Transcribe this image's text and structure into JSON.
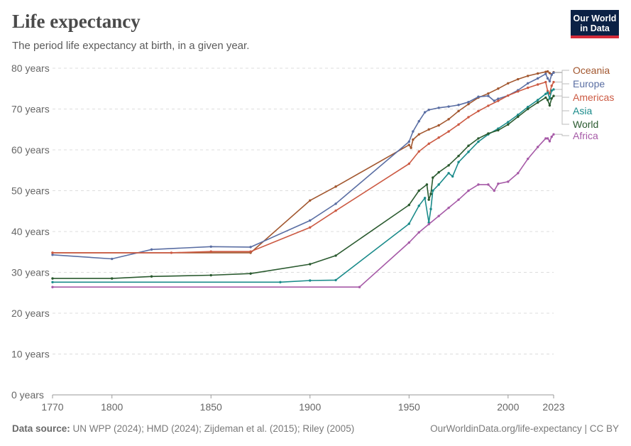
{
  "header": {
    "title": "Life expectancy",
    "subtitle": "The period life expectancy at birth, in a given year.",
    "logo_line1": "Our World",
    "logo_line2": "in Data"
  },
  "footer": {
    "source_label": "Data source:",
    "source_text": "UN WPP (2024); HMD (2024); Zijdeman et al. (2015); Riley (2005)",
    "link": "OurWorldinData.org/life-expectancy | CC BY"
  },
  "chart_data": {
    "type": "line",
    "title": "Life expectancy",
    "subtitle": "The period life expectancy at birth, in a given year.",
    "xlim": [
      1770,
      2023
    ],
    "ylim": [
      0,
      80
    ],
    "x_ticks": [
      {
        "value": 1770,
        "label": "1770"
      },
      {
        "value": 1800,
        "label": "1800"
      },
      {
        "value": 1850,
        "label": "1850"
      },
      {
        "value": 1900,
        "label": "1900"
      },
      {
        "value": 1950,
        "label": "1950"
      },
      {
        "value": 2000,
        "label": "2000"
      },
      {
        "value": 2023,
        "label": "2023"
      }
    ],
    "y_ticks": [
      {
        "value": 0,
        "label": "0 years"
      },
      {
        "value": 10,
        "label": "10 years"
      },
      {
        "value": 20,
        "label": "20 years"
      },
      {
        "value": 30,
        "label": "30 years"
      },
      {
        "value": 40,
        "label": "40 years"
      },
      {
        "value": 50,
        "label": "50 years"
      },
      {
        "value": 60,
        "label": "60 years"
      },
      {
        "value": 70,
        "label": "70 years"
      },
      {
        "value": 80,
        "label": "80 years"
      }
    ],
    "grid": true,
    "legend": "right",
    "series": [
      {
        "name": "Oceania",
        "color": "#a2572f",
        "points": [
          [
            1770,
            34.8
          ],
          [
            1870,
            34.8
          ],
          [
            1900,
            47.6
          ],
          [
            1913,
            51
          ],
          [
            1950,
            61.2
          ],
          [
            1951,
            60.5
          ],
          [
            1952,
            62.5
          ],
          [
            1955,
            63.8
          ],
          [
            1960,
            65
          ],
          [
            1965,
            66
          ],
          [
            1970,
            67.5
          ],
          [
            1975,
            69.5
          ],
          [
            1980,
            71.2
          ],
          [
            1985,
            72.8
          ],
          [
            1990,
            73.8
          ],
          [
            1995,
            75
          ],
          [
            2000,
            76.3
          ],
          [
            2005,
            77.3
          ],
          [
            2010,
            78.1
          ],
          [
            2015,
            78.7
          ],
          [
            2019,
            79.1
          ],
          [
            2020,
            79.2
          ],
          [
            2021,
            78.8
          ],
          [
            2022,
            78.5
          ],
          [
            2023,
            79.0
          ]
        ]
      },
      {
        "name": "Europe",
        "color": "#5a6ea3",
        "points": [
          [
            1770,
            34.3
          ],
          [
            1800,
            33.3
          ],
          [
            1820,
            35.6
          ],
          [
            1850,
            36.3
          ],
          [
            1870,
            36.2
          ],
          [
            1900,
            42.7
          ],
          [
            1913,
            46.8
          ],
          [
            1950,
            62
          ],
          [
            1952,
            64.5
          ],
          [
            1955,
            67
          ],
          [
            1958,
            69.2
          ],
          [
            1960,
            69.8
          ],
          [
            1965,
            70.3
          ],
          [
            1970,
            70.6
          ],
          [
            1975,
            71
          ],
          [
            1980,
            71.7
          ],
          [
            1985,
            73
          ],
          [
            1990,
            73.2
          ],
          [
            1993,
            72
          ],
          [
            1995,
            72.5
          ],
          [
            2000,
            73.3
          ],
          [
            2005,
            74.6
          ],
          [
            2010,
            76.3
          ],
          [
            2015,
            77.5
          ],
          [
            2019,
            78.6
          ],
          [
            2020,
            77.5
          ],
          [
            2021,
            76.8
          ],
          [
            2022,
            78.4
          ],
          [
            2023,
            78.9
          ]
        ]
      },
      {
        "name": "Americas",
        "color": "#cc5a43",
        "points": [
          [
            1770,
            34.8
          ],
          [
            1830,
            34.8
          ],
          [
            1850,
            35.1
          ],
          [
            1870,
            35.1
          ],
          [
            1900,
            41
          ],
          [
            1913,
            45.1
          ],
          [
            1950,
            56.6
          ],
          [
            1955,
            59.6
          ],
          [
            1960,
            61.5
          ],
          [
            1965,
            63
          ],
          [
            1970,
            64.5
          ],
          [
            1975,
            66.2
          ],
          [
            1980,
            68
          ],
          [
            1985,
            69.5
          ],
          [
            1990,
            70.8
          ],
          [
            1995,
            72
          ],
          [
            2000,
            73.3
          ],
          [
            2005,
            74.3
          ],
          [
            2010,
            75.2
          ],
          [
            2015,
            76
          ],
          [
            2019,
            76.6
          ],
          [
            2020,
            74.4
          ],
          [
            2021,
            73.8
          ],
          [
            2022,
            75.7
          ],
          [
            2023,
            76.6
          ]
        ]
      },
      {
        "name": "Asia",
        "color": "#1a8b8a",
        "points": [
          [
            1770,
            27.6
          ],
          [
            1885,
            27.6
          ],
          [
            1900,
            28
          ],
          [
            1913,
            28.1
          ],
          [
            1950,
            41.9
          ],
          [
            1955,
            46.3
          ],
          [
            1958,
            48.2
          ],
          [
            1960,
            42.2
          ],
          [
            1961,
            45.5
          ],
          [
            1962,
            50
          ],
          [
            1965,
            51.5
          ],
          [
            1970,
            54.3
          ],
          [
            1972,
            53.5
          ],
          [
            1975,
            57
          ],
          [
            1980,
            59.5
          ],
          [
            1985,
            62
          ],
          [
            1990,
            63.8
          ],
          [
            1995,
            65.2
          ],
          [
            2000,
            66.8
          ],
          [
            2005,
            68.6
          ],
          [
            2010,
            70.5
          ],
          [
            2015,
            72.2
          ],
          [
            2019,
            73.7
          ],
          [
            2020,
            74
          ],
          [
            2021,
            72.6
          ],
          [
            2022,
            74.5
          ],
          [
            2023,
            74.8
          ]
        ]
      },
      {
        "name": "World",
        "color": "#2a5a2f",
        "points": [
          [
            1770,
            28.5
          ],
          [
            1800,
            28.5
          ],
          [
            1820,
            29
          ],
          [
            1850,
            29.3
          ],
          [
            1870,
            29.7
          ],
          [
            1900,
            32
          ],
          [
            1913,
            34.1
          ],
          [
            1950,
            46.5
          ],
          [
            1955,
            50
          ],
          [
            1959,
            51.5
          ],
          [
            1960,
            47.8
          ],
          [
            1961,
            49.2
          ],
          [
            1962,
            53.2
          ],
          [
            1965,
            54.5
          ],
          [
            1970,
            56.2
          ],
          [
            1975,
            58.5
          ],
          [
            1980,
            61
          ],
          [
            1985,
            62.8
          ],
          [
            1990,
            64
          ],
          [
            1995,
            64.8
          ],
          [
            2000,
            66.2
          ],
          [
            2005,
            68.1
          ],
          [
            2010,
            70
          ],
          [
            2015,
            71.6
          ],
          [
            2019,
            72.8
          ],
          [
            2020,
            72.2
          ],
          [
            2021,
            70.9
          ],
          [
            2022,
            72.6
          ],
          [
            2023,
            73.2
          ]
        ]
      },
      {
        "name": "Africa",
        "color": "#a65aa7",
        "points": [
          [
            1770,
            26.4
          ],
          [
            1925,
            26.4
          ],
          [
            1950,
            37.3
          ],
          [
            1955,
            39.8
          ],
          [
            1960,
            41.8
          ],
          [
            1965,
            43.8
          ],
          [
            1970,
            45.8
          ],
          [
            1975,
            47.8
          ],
          [
            1980,
            50
          ],
          [
            1985,
            51.5
          ],
          [
            1990,
            51.5
          ],
          [
            1993,
            50
          ],
          [
            1995,
            51.7
          ],
          [
            2000,
            52.2
          ],
          [
            2005,
            54.3
          ],
          [
            2010,
            57.8
          ],
          [
            2015,
            60.7
          ],
          [
            2019,
            62.8
          ],
          [
            2020,
            62.8
          ],
          [
            2021,
            62.1
          ],
          [
            2022,
            63.2
          ],
          [
            2023,
            63.8
          ]
        ]
      }
    ]
  }
}
